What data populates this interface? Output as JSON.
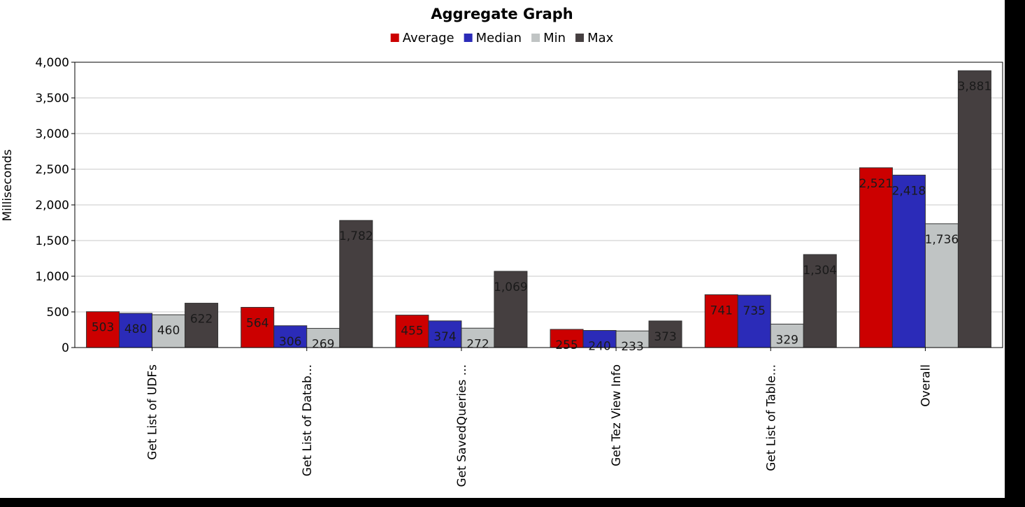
{
  "chart_data": {
    "type": "bar",
    "title": "Aggregate Graph",
    "xlabel": "",
    "ylabel": "Milliseconds",
    "ylim": [
      0,
      4000
    ],
    "yticks": [
      0,
      500,
      1000,
      1500,
      2000,
      2500,
      3000,
      3500,
      4000
    ],
    "ytick_labels": [
      "0",
      "500",
      "1,000",
      "1,500",
      "2,000",
      "2,500",
      "3,000",
      "3,500",
      "4,000"
    ],
    "grid": true,
    "legend_position": "top",
    "categories": [
      "Get List of UDFs",
      "Get List of Datab...",
      "Get SavedQueries ...",
      "Get Tez View Info",
      "Get List of Table...",
      "Overall"
    ],
    "series": [
      {
        "name": "Average",
        "color": "#cc0000",
        "values": [
          503,
          564,
          455,
          255,
          741,
          2521
        ],
        "labels": [
          "503",
          "564",
          "455",
          "255",
          "741",
          "2,521"
        ]
      },
      {
        "name": "Median",
        "color": "#2b2bb8",
        "values": [
          480,
          306,
          374,
          240,
          735,
          2418
        ],
        "labels": [
          "480",
          "306",
          "374",
          "240",
          "735",
          "2,418"
        ]
      },
      {
        "name": "Min",
        "color": "#c0c4c4",
        "values": [
          460,
          269,
          272,
          233,
          329,
          1736
        ],
        "labels": [
          "460",
          "269",
          "272",
          "233",
          "329",
          "1,736"
        ]
      },
      {
        "name": "Max",
        "color": "#453f40",
        "values": [
          622,
          1782,
          1069,
          373,
          1304,
          3881
        ],
        "labels": [
          "622",
          "1,782",
          "1,069",
          "373",
          "1,304",
          "3,881"
        ]
      }
    ]
  }
}
